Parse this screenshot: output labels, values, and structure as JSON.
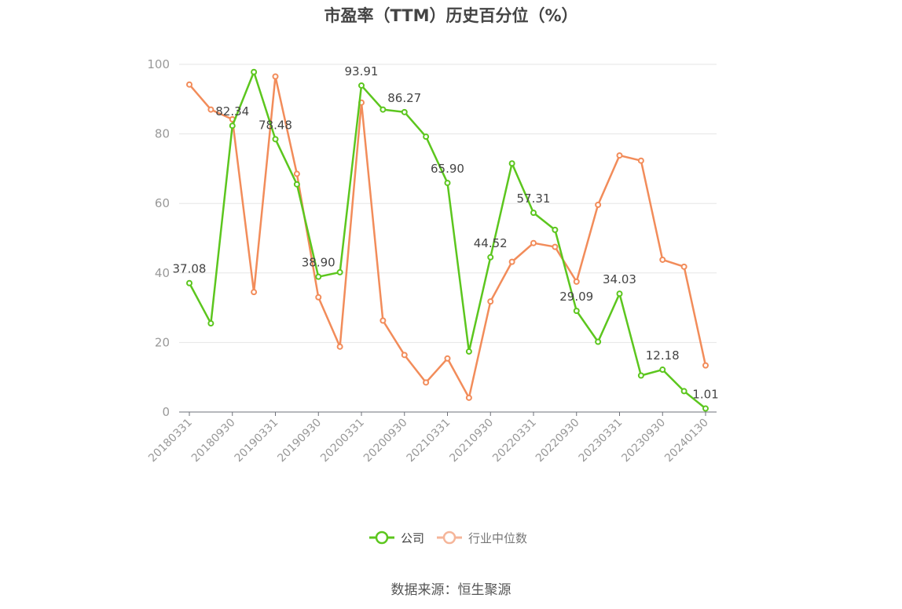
{
  "chart_data": {
    "type": "line",
    "title": "市盈率（TTM）历史百分位（%）",
    "ylim": [
      0,
      100
    ],
    "yticks": [
      0,
      20,
      40,
      60,
      80,
      100
    ],
    "grid": "horizontal",
    "legend_position": "bottom-center",
    "x": [
      "20180331",
      "20180630",
      "20180930",
      "20181231",
      "20190331",
      "20190630",
      "20190930",
      "20191231",
      "20200331",
      "20200630",
      "20200930",
      "20201231",
      "20210331",
      "20210630",
      "20210930",
      "20211231",
      "20220331",
      "20220630",
      "20220930",
      "20221231",
      "20230331",
      "20230630",
      "20230930",
      "20231231",
      "20240130"
    ],
    "x_tick_labels": [
      "20180331",
      "20180930",
      "20190331",
      "20190930",
      "20200331",
      "20200930",
      "20210331",
      "20210930",
      "20220331",
      "20220930",
      "20230331",
      "20230930",
      "20240130"
    ],
    "series": [
      {
        "name": "公司",
        "color": "#5cc61e",
        "values": [
          37.08,
          25.5,
          82.34,
          97.8,
          78.48,
          65.5,
          38.9,
          40.2,
          93.91,
          87.0,
          86.27,
          79.2,
          65.9,
          17.4,
          44.52,
          71.5,
          57.31,
          52.4,
          29.09,
          20.2,
          34.03,
          10.5,
          12.18,
          6.0,
          1.01
        ],
        "labels": [
          "37.08",
          "",
          "82.34",
          "",
          "78.48",
          "",
          "38.90",
          "",
          "93.91",
          "",
          "86.27",
          "",
          "65.90",
          "",
          "44.52",
          "",
          "57.31",
          "",
          "29.09",
          "",
          "34.03",
          "",
          "12.18",
          "",
          "1.01"
        ]
      },
      {
        "name": "行业中位数",
        "color": "#f28c5a",
        "values": [
          94.2,
          87.0,
          84.2,
          34.5,
          96.5,
          68.5,
          33.0,
          18.8,
          89.0,
          26.3,
          16.4,
          8.5,
          15.4,
          4.1,
          31.8,
          43.2,
          48.6,
          47.5,
          37.5,
          59.6,
          73.8,
          72.3,
          43.8,
          41.8,
          13.4
        ]
      }
    ]
  },
  "source": "数据来源：恒生聚源"
}
